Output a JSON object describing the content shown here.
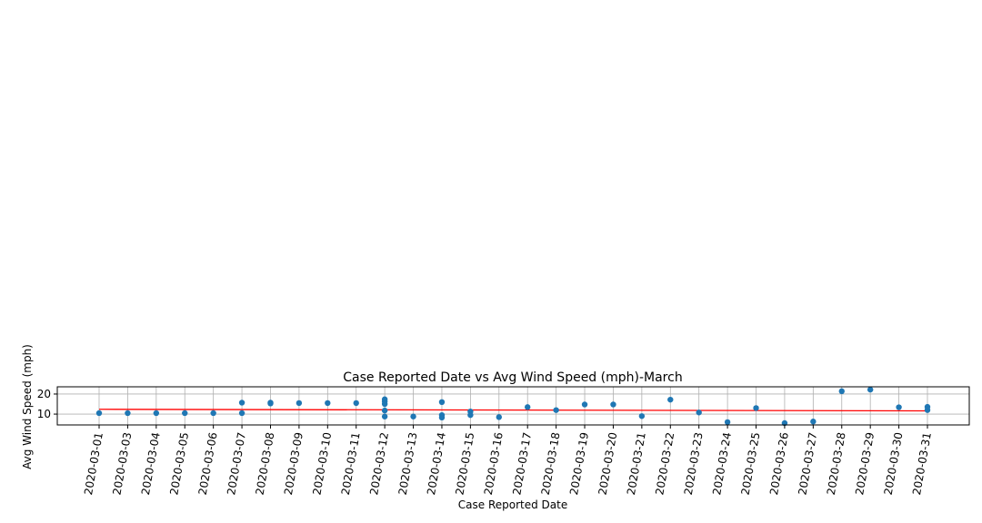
{
  "chart_data": {
    "type": "scatter",
    "title": "Case Reported Date vs Avg Wind Speed (mph)-March",
    "xlabel": "Case Reported Date",
    "ylabel": "Avg Wind Speed (mph)",
    "categories": [
      "2020-03-01",
      "2020-03-03",
      "2020-03-04",
      "2020-03-05",
      "2020-03-06",
      "2020-03-07",
      "2020-03-08",
      "2020-03-09",
      "2020-03-10",
      "2020-03-11",
      "2020-03-12",
      "2020-03-13",
      "2020-03-14",
      "2020-03-15",
      "2020-03-16",
      "2020-03-17",
      "2020-03-18",
      "2020-03-19",
      "2020-03-20",
      "2020-03-21",
      "2020-03-22",
      "2020-03-23",
      "2020-03-24",
      "2020-03-25",
      "2020-03-26",
      "2020-03-27",
      "2020-03-28",
      "2020-03-29",
      "2020-03-30",
      "2020-03-31"
    ],
    "yticks": [
      10,
      20
    ],
    "ylim": [
      4.6,
      23.6
    ],
    "grid": true,
    "points": [
      {
        "x": "2020-03-01",
        "y": 10.5
      },
      {
        "x": "2020-03-03",
        "y": 10.5
      },
      {
        "x": "2020-03-04",
        "y": 10.5
      },
      {
        "x": "2020-03-05",
        "y": 10.5
      },
      {
        "x": "2020-03-06",
        "y": 10.5
      },
      {
        "x": "2020-03-07",
        "y": 10.5
      },
      {
        "x": "2020-03-07",
        "y": 15.7
      },
      {
        "x": "2020-03-08",
        "y": 15.7
      },
      {
        "x": "2020-03-08",
        "y": 15.3
      },
      {
        "x": "2020-03-09",
        "y": 15.5
      },
      {
        "x": "2020-03-10",
        "y": 15.5
      },
      {
        "x": "2020-03-11",
        "y": 15.5
      },
      {
        "x": "2020-03-12",
        "y": 17.4
      },
      {
        "x": "2020-03-12",
        "y": 16.3
      },
      {
        "x": "2020-03-12",
        "y": 15.0
      },
      {
        "x": "2020-03-12",
        "y": 11.8
      },
      {
        "x": "2020-03-12",
        "y": 8.8
      },
      {
        "x": "2020-03-13",
        "y": 8.8
      },
      {
        "x": "2020-03-14",
        "y": 16.0
      },
      {
        "x": "2020-03-14",
        "y": 9.5
      },
      {
        "x": "2020-03-14",
        "y": 8.3
      },
      {
        "x": "2020-03-15",
        "y": 11.3
      },
      {
        "x": "2020-03-15",
        "y": 9.5
      },
      {
        "x": "2020-03-16",
        "y": 8.5
      },
      {
        "x": "2020-03-17",
        "y": 13.5
      },
      {
        "x": "2020-03-18",
        "y": 12.0
      },
      {
        "x": "2020-03-19",
        "y": 14.8
      },
      {
        "x": "2020-03-20",
        "y": 14.8
      },
      {
        "x": "2020-03-21",
        "y": 9.0
      },
      {
        "x": "2020-03-22",
        "y": 17.2
      },
      {
        "x": "2020-03-23",
        "y": 10.8
      },
      {
        "x": "2020-03-24",
        "y": 6.0
      },
      {
        "x": "2020-03-25",
        "y": 13.0
      },
      {
        "x": "2020-03-26",
        "y": 5.5
      },
      {
        "x": "2020-03-27",
        "y": 6.3
      },
      {
        "x": "2020-03-28",
        "y": 21.4
      },
      {
        "x": "2020-03-29",
        "y": 22.2
      },
      {
        "x": "2020-03-30",
        "y": 13.4
      },
      {
        "x": "2020-03-31",
        "y": 13.6
      },
      {
        "x": "2020-03-31",
        "y": 12.0
      }
    ],
    "trendline": {
      "start": {
        "x": "2020-03-01",
        "y": 12.4
      },
      "end": {
        "x": "2020-03-31",
        "y": 11.6
      },
      "color": "#ff0000"
    },
    "colors": {
      "marker": "#1f77b4",
      "trendline": "#ff0000",
      "grid": "#b0b0b0"
    }
  }
}
